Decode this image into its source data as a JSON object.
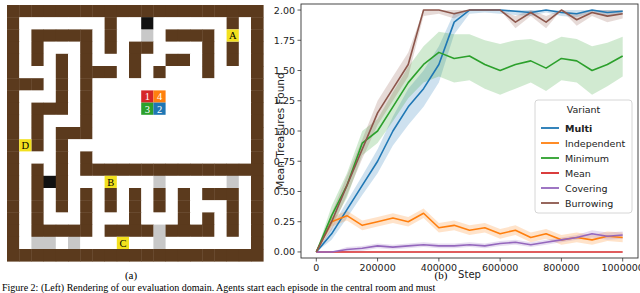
{
  "chart_data": {
    "type": "line",
    "x_label": "Step",
    "y_label": "Mean Treasures Found",
    "x": [
      0,
      50000,
      100000,
      150000,
      200000,
      250000,
      300000,
      350000,
      400000,
      450000,
      500000,
      550000,
      600000,
      650000,
      700000,
      750000,
      800000,
      850000,
      900000,
      950000,
      1000000
    ],
    "xlim": [
      -50000,
      1050000
    ],
    "xticks": [
      0,
      200000,
      400000,
      600000,
      800000,
      1000000
    ],
    "ylim": [
      -0.05,
      2.05
    ],
    "yticks": [
      {
        "value": 0,
        "label": "0.00"
      },
      {
        "value": 0.25,
        "label": "0.25"
      },
      {
        "value": 0.5,
        "label": "0.50"
      },
      {
        "value": 0.75,
        "label": "0.75"
      },
      {
        "value": 1,
        "label": "1.00"
      },
      {
        "value": 1.25,
        "label": "1.25"
      },
      {
        "value": 1.5,
        "label": "1.50"
      },
      {
        "value": 1.75,
        "label": "1.75"
      },
      {
        "value": 2,
        "label": "2.00"
      }
    ],
    "grid": false,
    "legend": "right",
    "legend_title": "Variant",
    "series": [
      {
        "name": "Multi",
        "color": "#1f77b4",
        "values": [
          0,
          0.15,
          0.35,
          0.55,
          0.75,
          1.0,
          1.2,
          1.35,
          1.55,
          1.9,
          2.0,
          2.0,
          2.0,
          1.99,
          1.98,
          2.0,
          1.98,
          1.97,
          2.0,
          1.98,
          1.99
        ],
        "ci_lower": [
          0,
          0.1,
          0.28,
          0.47,
          0.65,
          0.88,
          1.05,
          1.2,
          1.4,
          1.8,
          1.97,
          1.98,
          1.97,
          1.96,
          1.95,
          1.98,
          1.95,
          1.94,
          1.98,
          1.95,
          1.97
        ],
        "ci_upper": [
          0,
          0.2,
          0.42,
          0.63,
          0.85,
          1.12,
          1.35,
          1.5,
          1.7,
          1.98,
          2.0,
          2.0,
          2.0,
          2.0,
          2.0,
          2.0,
          2.0,
          2.0,
          2.0,
          2.0,
          2.0
        ]
      },
      {
        "name": "Independent",
        "color": "#ff7f0e",
        "values": [
          0,
          0.25,
          0.3,
          0.22,
          0.25,
          0.28,
          0.25,
          0.32,
          0.2,
          0.22,
          0.18,
          0.2,
          0.15,
          0.18,
          0.12,
          0.15,
          0.1,
          0.12,
          0.1,
          0.13,
          0.12
        ],
        "ci_lower": [
          0,
          0.21,
          0.26,
          0.18,
          0.21,
          0.24,
          0.21,
          0.28,
          0.16,
          0.18,
          0.14,
          0.16,
          0.11,
          0.14,
          0.08,
          0.11,
          0.06,
          0.08,
          0.06,
          0.09,
          0.08
        ],
        "ci_upper": [
          0,
          0.29,
          0.34,
          0.26,
          0.29,
          0.32,
          0.29,
          0.36,
          0.24,
          0.26,
          0.22,
          0.24,
          0.19,
          0.22,
          0.16,
          0.19,
          0.14,
          0.16,
          0.14,
          0.17,
          0.16
        ]
      },
      {
        "name": "Minimum",
        "color": "#2ca02c",
        "values": [
          0,
          0.3,
          0.55,
          0.9,
          1.0,
          1.2,
          1.4,
          1.55,
          1.65,
          1.6,
          1.62,
          1.55,
          1.5,
          1.55,
          1.58,
          1.52,
          1.6,
          1.58,
          1.5,
          1.55,
          1.62
        ],
        "ci_lower": [
          0,
          0.22,
          0.45,
          0.8,
          0.9,
          1.08,
          1.27,
          1.4,
          1.45,
          1.4,
          1.42,
          1.35,
          1.3,
          1.35,
          1.4,
          1.33,
          1.42,
          1.4,
          1.3,
          1.37,
          1.45
        ],
        "ci_upper": [
          0,
          0.38,
          0.65,
          1.0,
          1.1,
          1.32,
          1.53,
          1.7,
          1.82,
          1.8,
          1.8,
          1.75,
          1.72,
          1.75,
          1.76,
          1.72,
          1.78,
          1.76,
          1.7,
          1.73,
          1.78
        ]
      },
      {
        "name": "Mean",
        "color": "#d62728",
        "values": [
          0,
          0,
          0,
          0,
          0,
          0,
          0,
          0,
          0,
          0,
          0,
          0,
          0,
          0,
          0,
          0,
          0,
          0,
          0,
          0,
          0
        ],
        "ci_lower": [
          0,
          0,
          0,
          0,
          0,
          0,
          0,
          0,
          0,
          0,
          0,
          0,
          0,
          0,
          0,
          0,
          0,
          0,
          0,
          0,
          0
        ],
        "ci_upper": [
          0,
          0,
          0,
          0,
          0,
          0,
          0,
          0,
          0,
          0,
          0,
          0,
          0,
          0,
          0,
          0,
          0,
          0,
          0,
          0,
          0
        ]
      },
      {
        "name": "Covering",
        "color": "#9467bd",
        "values": [
          0,
          0,
          0.02,
          0.03,
          0.05,
          0.04,
          0.05,
          0.06,
          0.05,
          0.05,
          0.06,
          0.05,
          0.07,
          0.08,
          0.06,
          0.08,
          0.1,
          0.12,
          0.15,
          0.13,
          0.14
        ],
        "ci_lower": [
          0,
          0,
          0,
          0.01,
          0.03,
          0.02,
          0.03,
          0.04,
          0.03,
          0.03,
          0.04,
          0.03,
          0.05,
          0.06,
          0.04,
          0.06,
          0.08,
          0.1,
          0.12,
          0.1,
          0.11
        ],
        "ci_upper": [
          0,
          0,
          0.04,
          0.05,
          0.07,
          0.06,
          0.07,
          0.08,
          0.07,
          0.07,
          0.08,
          0.07,
          0.09,
          0.1,
          0.08,
          0.1,
          0.12,
          0.14,
          0.18,
          0.16,
          0.17
        ]
      },
      {
        "name": "Burrowing",
        "color": "#8c564b",
        "values": [
          0,
          0.25,
          0.55,
          0.85,
          1.15,
          1.35,
          1.55,
          2.0,
          2.0,
          1.97,
          2.0,
          2.0,
          2.0,
          1.9,
          1.98,
          1.9,
          2.0,
          1.92,
          1.98,
          1.95,
          1.97
        ],
        "ci_lower": [
          0,
          0.18,
          0.47,
          0.77,
          1.05,
          1.25,
          1.45,
          1.95,
          1.97,
          1.93,
          2.0,
          2.0,
          2.0,
          1.85,
          1.95,
          1.85,
          2.0,
          1.87,
          1.95,
          1.9,
          1.93
        ],
        "ci_upper": [
          0,
          0.32,
          0.63,
          0.93,
          1.25,
          1.45,
          1.65,
          2.0,
          2.0,
          2.0,
          2.0,
          2.0,
          2.0,
          1.95,
          2.0,
          1.95,
          2.0,
          1.97,
          2.0,
          2.0,
          2.0
        ]
      }
    ]
  },
  "figure": {
    "panel_a": {
      "label": "(a)",
      "goal_labels": [
        "A",
        "B",
        "C",
        "D"
      ],
      "agent_labels": [
        "1",
        "4",
        "3",
        "2"
      ]
    },
    "panel_b": {
      "label": "(b)"
    },
    "caption": "Figure 2: (Left) Rendering of our evaluation domain. Agents start each episode in the central room and must"
  }
}
